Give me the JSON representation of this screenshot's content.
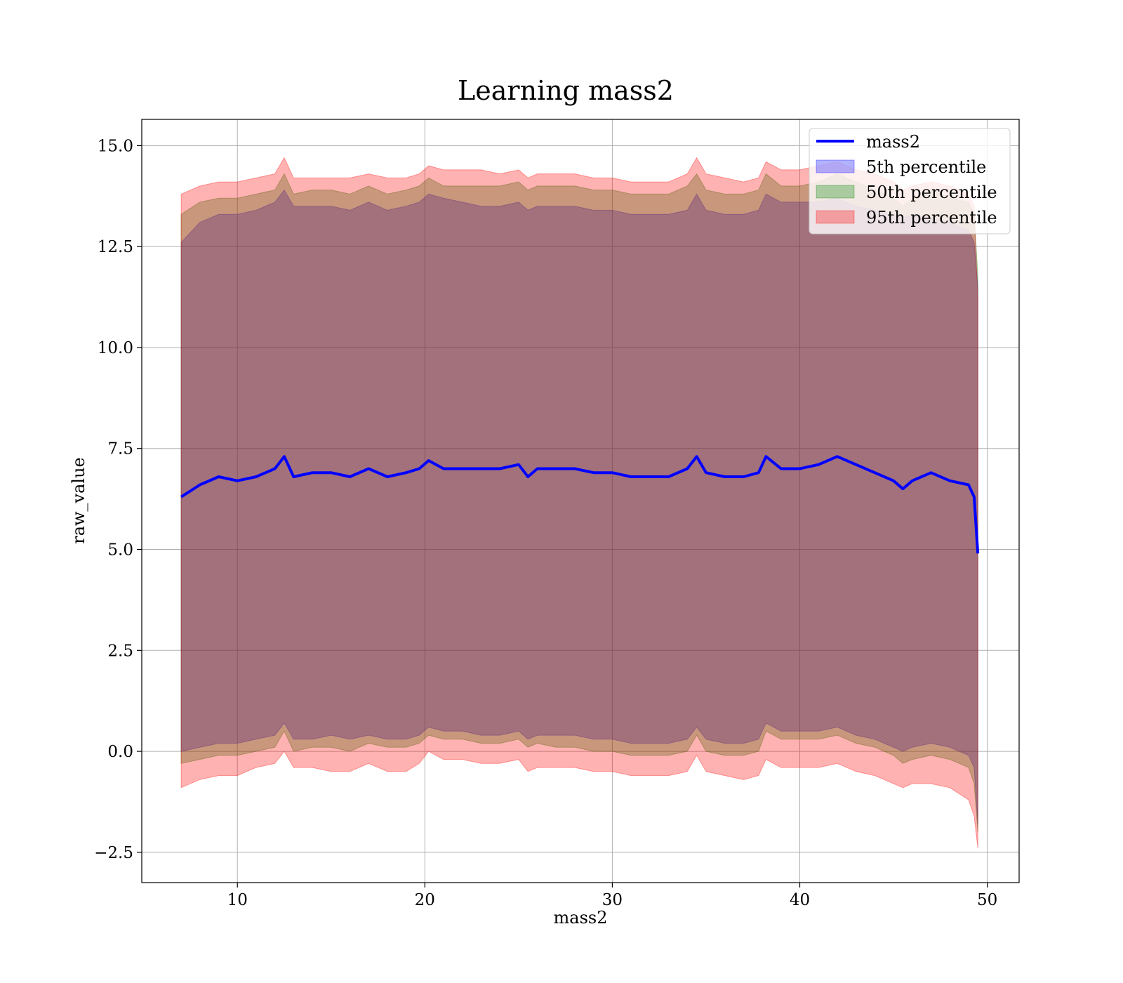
{
  "chart_data": {
    "type": "area",
    "title": "Learning mass2",
    "xlabel": "mass2",
    "ylabel": "raw_value",
    "xlim": [
      4.9,
      51.7
    ],
    "ylim": [
      -3.25,
      15.65
    ],
    "xticks": [
      10,
      20,
      30,
      40,
      50
    ],
    "yticks": [
      -2.5,
      0.0,
      2.5,
      5.0,
      7.5,
      10.0,
      12.5,
      15.0
    ],
    "xtick_labels": [
      "10",
      "20",
      "30",
      "40",
      "50"
    ],
    "ytick_labels": [
      "−2.5",
      "0.0",
      "2.5",
      "5.0",
      "7.5",
      "10.0",
      "12.5",
      "15.0"
    ],
    "grid": true,
    "legend_position": "top-right",
    "legend": [
      "mass2",
      "5th percentile",
      "50th percentile",
      "95th percentile"
    ],
    "colors": {
      "line": "#0000ff",
      "p5": "#0000ff",
      "p50": "#008000",
      "p95": "#ff0000"
    },
    "x": [
      7.0,
      8.0,
      9.0,
      10.0,
      11.0,
      12.0,
      12.5,
      13.0,
      14.0,
      15.0,
      16.0,
      17.0,
      18.0,
      19.0,
      19.7,
      20.2,
      21.0,
      22.0,
      23.0,
      24.0,
      25.0,
      25.5,
      26.0,
      27.0,
      28.0,
      29.0,
      30.0,
      31.0,
      32.0,
      33.0,
      34.0,
      34.5,
      35.0,
      36.0,
      37.0,
      37.8,
      38.2,
      39.0,
      40.0,
      41.0,
      42.0,
      43.0,
      44.0,
      45.0,
      45.5,
      46.0,
      47.0,
      48.0,
      49.0,
      49.3,
      49.5
    ],
    "series": [
      {
        "name": "mass2",
        "values": [
          6.3,
          6.6,
          6.8,
          6.7,
          6.8,
          7.0,
          7.3,
          6.8,
          6.9,
          6.9,
          6.8,
          7.0,
          6.8,
          6.9,
          7.0,
          7.2,
          7.0,
          7.0,
          7.0,
          7.0,
          7.1,
          6.8,
          7.0,
          7.0,
          7.0,
          6.9,
          6.9,
          6.8,
          6.8,
          6.8,
          7.0,
          7.3,
          6.9,
          6.8,
          6.8,
          6.9,
          7.3,
          7.0,
          7.0,
          7.1,
          7.3,
          7.1,
          6.9,
          6.7,
          6.5,
          6.7,
          6.9,
          6.7,
          6.6,
          6.3,
          4.9
        ]
      },
      {
        "name": "5th percentile",
        "lower": [
          0.0,
          0.1,
          0.2,
          0.2,
          0.3,
          0.4,
          0.7,
          0.3,
          0.3,
          0.4,
          0.3,
          0.4,
          0.3,
          0.3,
          0.4,
          0.6,
          0.5,
          0.5,
          0.4,
          0.4,
          0.5,
          0.3,
          0.4,
          0.4,
          0.4,
          0.3,
          0.3,
          0.2,
          0.2,
          0.2,
          0.3,
          0.6,
          0.3,
          0.2,
          0.2,
          0.3,
          0.7,
          0.5,
          0.5,
          0.5,
          0.6,
          0.4,
          0.3,
          0.1,
          0.0,
          0.1,
          0.2,
          0.1,
          -0.1,
          -0.4,
          -1.8
        ],
        "upper": [
          12.6,
          13.1,
          13.3,
          13.3,
          13.4,
          13.6,
          13.9,
          13.5,
          13.5,
          13.5,
          13.4,
          13.6,
          13.4,
          13.5,
          13.6,
          13.8,
          13.7,
          13.6,
          13.5,
          13.5,
          13.6,
          13.4,
          13.5,
          13.5,
          13.5,
          13.4,
          13.4,
          13.3,
          13.3,
          13.3,
          13.4,
          13.8,
          13.4,
          13.3,
          13.3,
          13.4,
          13.8,
          13.6,
          13.6,
          13.6,
          13.7,
          13.5,
          13.4,
          13.3,
          13.2,
          13.3,
          13.2,
          13.1,
          12.9,
          12.6,
          11.5
        ]
      },
      {
        "name": "50th percentile",
        "lower": [
          -0.3,
          -0.2,
          -0.1,
          -0.1,
          0.0,
          0.1,
          0.5,
          0.0,
          0.1,
          0.1,
          0.0,
          0.2,
          0.1,
          0.1,
          0.2,
          0.4,
          0.3,
          0.3,
          0.2,
          0.2,
          0.3,
          0.1,
          0.2,
          0.1,
          0.1,
          0.0,
          0.0,
          -0.1,
          -0.1,
          -0.1,
          0.0,
          0.4,
          0.0,
          -0.1,
          -0.1,
          0.0,
          0.5,
          0.3,
          0.3,
          0.3,
          0.4,
          0.2,
          0.1,
          -0.1,
          -0.3,
          -0.2,
          -0.1,
          -0.2,
          -0.4,
          -0.8,
          -2.0
        ],
        "upper": [
          13.3,
          13.6,
          13.7,
          13.7,
          13.8,
          13.9,
          14.3,
          13.8,
          13.9,
          13.9,
          13.8,
          14.0,
          13.8,
          13.9,
          14.0,
          14.2,
          14.0,
          14.0,
          14.0,
          14.0,
          14.1,
          13.9,
          14.0,
          14.0,
          14.0,
          13.9,
          13.9,
          13.8,
          13.8,
          13.8,
          14.0,
          14.3,
          13.9,
          13.8,
          13.8,
          13.9,
          14.3,
          14.0,
          14.0,
          14.1,
          14.3,
          14.1,
          13.9,
          13.7,
          13.5,
          13.7,
          13.9,
          13.7,
          13.6,
          13.3,
          11.8
        ]
      },
      {
        "name": "95th percentile",
        "lower": [
          -0.9,
          -0.7,
          -0.6,
          -0.6,
          -0.4,
          -0.3,
          0.0,
          -0.4,
          -0.4,
          -0.5,
          -0.5,
          -0.3,
          -0.5,
          -0.5,
          -0.3,
          0.0,
          -0.2,
          -0.2,
          -0.3,
          -0.3,
          -0.2,
          -0.5,
          -0.4,
          -0.4,
          -0.4,
          -0.5,
          -0.5,
          -0.6,
          -0.6,
          -0.6,
          -0.5,
          -0.1,
          -0.5,
          -0.6,
          -0.7,
          -0.6,
          -0.2,
          -0.4,
          -0.4,
          -0.4,
          -0.3,
          -0.5,
          -0.6,
          -0.8,
          -0.9,
          -0.8,
          -0.8,
          -0.9,
          -1.2,
          -1.6,
          -2.4
        ],
        "upper": [
          13.8,
          14.0,
          14.1,
          14.1,
          14.2,
          14.3,
          14.7,
          14.2,
          14.2,
          14.2,
          14.2,
          14.3,
          14.2,
          14.2,
          14.3,
          14.5,
          14.4,
          14.4,
          14.4,
          14.3,
          14.4,
          14.2,
          14.3,
          14.3,
          14.3,
          14.2,
          14.2,
          14.1,
          14.1,
          14.1,
          14.3,
          14.7,
          14.3,
          14.2,
          14.1,
          14.2,
          14.6,
          14.4,
          14.4,
          14.5,
          14.6,
          14.4,
          14.3,
          14.1,
          13.9,
          14.0,
          14.1,
          14.0,
          13.8,
          13.5,
          11.2
        ]
      }
    ]
  }
}
